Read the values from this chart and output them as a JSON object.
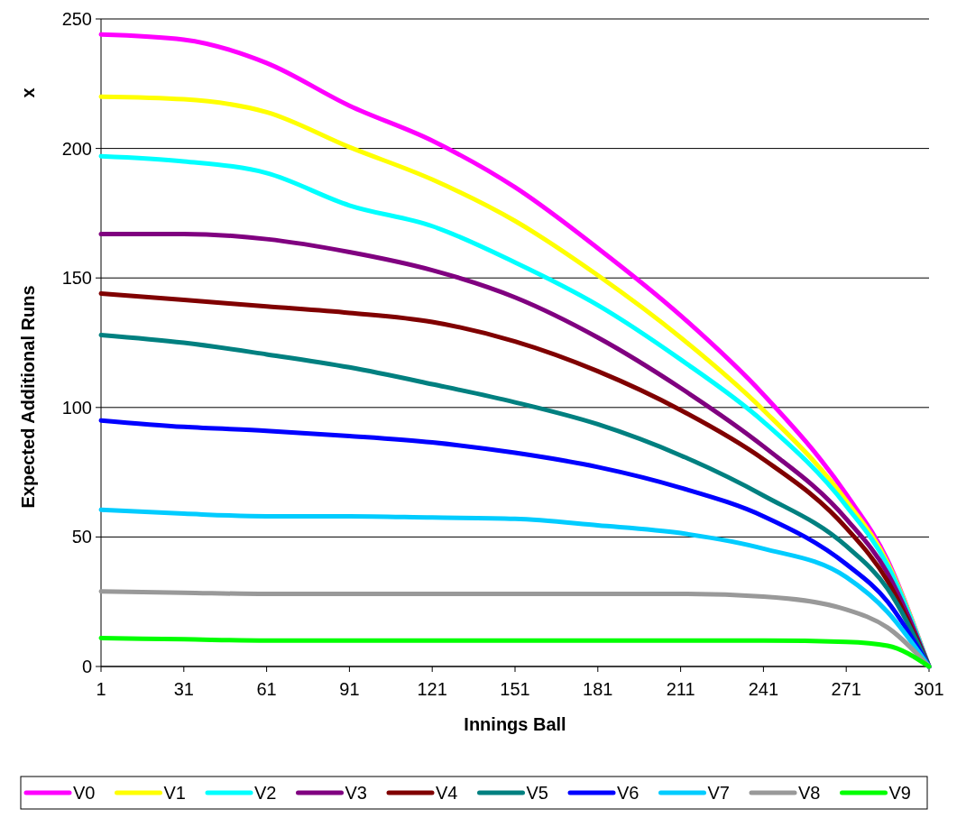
{
  "chart_data": {
    "type": "line",
    "xlabel": "Innings Ball",
    "ylabel": "Expected Additional Runs",
    "annotations": [
      "x"
    ],
    "x": [
      1,
      31,
      61,
      91,
      121,
      151,
      181,
      211,
      241,
      271,
      286,
      301
    ],
    "xlim": [
      1,
      301
    ],
    "xticks": [
      1,
      31,
      61,
      91,
      121,
      151,
      181,
      211,
      241,
      271,
      301
    ],
    "ylim": [
      0,
      250
    ],
    "yticks": [
      0,
      50,
      100,
      150,
      200,
      250
    ],
    "grid": "y",
    "legend": "bottom",
    "marker": "none",
    "line_style": "solid",
    "series": [
      {
        "name": "V0",
        "color": "#ff00ff",
        "values": [
          244,
          242,
          233,
          216.5,
          203,
          185,
          161.5,
          135.5,
          105,
          66.5,
          41,
          0
        ]
      },
      {
        "name": "V1",
        "color": "#ffff00",
        "values": [
          220,
          219,
          214,
          200.5,
          188,
          172,
          151,
          127,
          99,
          64,
          40,
          0
        ]
      },
      {
        "name": "V2",
        "color": "#00ffff",
        "values": [
          197,
          195,
          190.5,
          178,
          170,
          156,
          139.5,
          118.5,
          94.5,
          62,
          39,
          0
        ]
      },
      {
        "name": "V3",
        "color": "#800080",
        "values": [
          167,
          167,
          165,
          160,
          153,
          142.5,
          127,
          107.5,
          85,
          57,
          36,
          0
        ]
      },
      {
        "name": "V4",
        "color": "#800000",
        "values": [
          144,
          141.5,
          139,
          136.5,
          133,
          125.5,
          114,
          99,
          80,
          53.5,
          33,
          0
        ]
      },
      {
        "name": "V5",
        "color": "#008080",
        "values": [
          128,
          125,
          120.5,
          115.5,
          109,
          102,
          93.5,
          81.5,
          66,
          46.5,
          30,
          0
        ]
      },
      {
        "name": "V6",
        "color": "#0000ff",
        "values": [
          95,
          92.5,
          91,
          89,
          86.5,
          82.5,
          77,
          69,
          58,
          39.5,
          25,
          0
        ]
      },
      {
        "name": "V7",
        "color": "#00ccff",
        "values": [
          60.5,
          59,
          58,
          58,
          57.5,
          57,
          54.5,
          51.5,
          45.5,
          34.5,
          21,
          0
        ]
      },
      {
        "name": "V8",
        "color": "#999999",
        "values": [
          29,
          28.5,
          28,
          28,
          28,
          28,
          28,
          28,
          27,
          22,
          15,
          0
        ]
      },
      {
        "name": "V9",
        "color": "#00ff00",
        "values": [
          11,
          10.5,
          10,
          10,
          10,
          10,
          10,
          10,
          10,
          9.5,
          8,
          0
        ]
      }
    ]
  }
}
